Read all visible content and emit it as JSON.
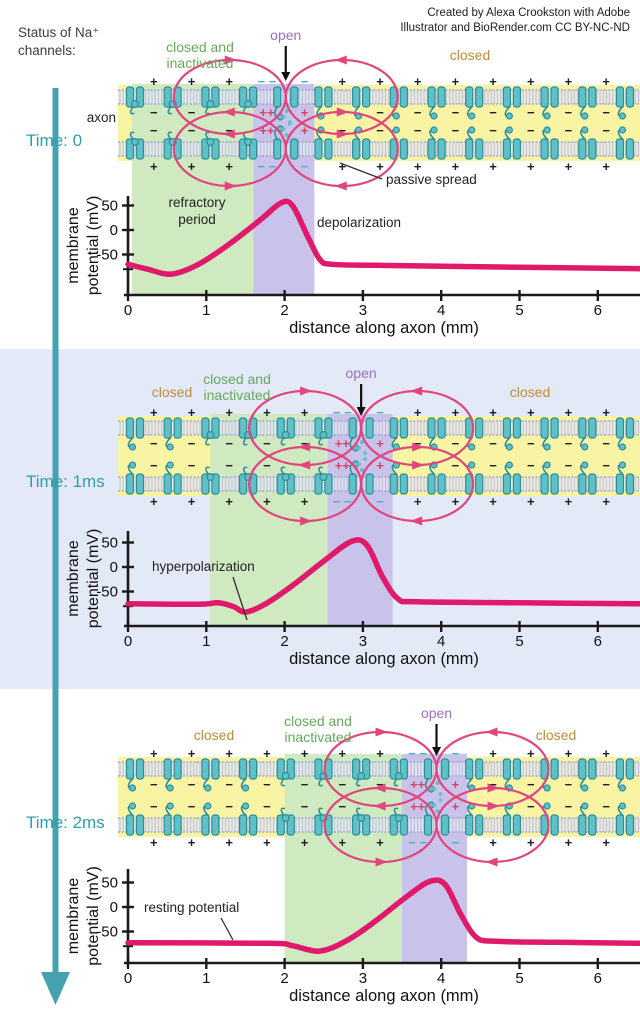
{
  "attribution": {
    "line1": "Created by Alexa Crookston with Adobe",
    "line2": "Illustrator and BioRender.com CC BY-NC-ND"
  },
  "status_label": {
    "line1": "Status of Na⁺",
    "line2": "channels:"
  },
  "colors": {
    "accent_teal": "#2f9fac",
    "timeline_teal": "#44a3af",
    "curve_pink": "#e0196b",
    "loop_pink": "#e0457d",
    "zone_green": "#cfe9c1",
    "zone_purple": "#c9c3ec",
    "zone_yellow": "#f9f3a4",
    "panel2_bg": "#e4e9f7",
    "label_green": "#68a85c",
    "label_purple": "#9a6fc0",
    "label_orange": "#bf8b3a",
    "channel_fill": "#5fc0c5",
    "channel_stroke": "#2c8e99",
    "membrane_fill": "#e7e9f3",
    "membrane_stripe": "#aeb2cf",
    "charge_black": "#1f1f1f",
    "charge_red": "#d6455e",
    "charge_teal": "#49b0bd",
    "axis_black": "#1a1a1a"
  },
  "charges": {
    "outside_resting": "+",
    "inside_resting": "−",
    "outside_depolarized_double": "− −",
    "outside_depolarized_single": "−",
    "inside_depolarized_double": "++",
    "inside_depolarized_single": "+"
  },
  "panels": [
    {
      "id": "time-0",
      "time_label": "Time: 0",
      "axon_label": "axon",
      "channel_labels": {
        "left_closed": "",
        "inactivated_line1": "closed and",
        "inactivated_line2": "inactivated",
        "open": "open",
        "right_closed": "closed"
      },
      "annotations": {
        "refractory_line1": "refractory",
        "refractory_line2": "period",
        "depolarization": "depolarization",
        "passive_spread": "passive spread"
      },
      "channel_states": [
        "inactivated",
        "inactivated",
        "inactivated",
        "inactivated",
        "open",
        "closed",
        "closed",
        "closed",
        "closed",
        "closed",
        "closed",
        "closed",
        "closed",
        "closed"
      ]
    },
    {
      "id": "time-1ms",
      "time_label": "Time: 1ms",
      "axon_label": "",
      "channel_labels": {
        "left_closed": "closed",
        "inactivated_line1": "closed and",
        "inactivated_line2": "inactivated",
        "open": "open",
        "right_closed": "closed"
      },
      "annotations": {
        "hyperpolarization": "hyperpolarization"
      },
      "channel_states": [
        "closed",
        "closed",
        "inactivated",
        "inactivated",
        "inactivated",
        "inactivated",
        "open",
        "closed",
        "closed",
        "closed",
        "closed",
        "closed",
        "closed",
        "closed"
      ]
    },
    {
      "id": "time-2ms",
      "time_label": "Time: 2ms",
      "axon_label": "",
      "channel_labels": {
        "left_closed": "closed",
        "inactivated_line1": "closed and",
        "inactivated_line2": "inactivated",
        "open": "open",
        "right_closed": "closed"
      },
      "annotations": {
        "resting_potential": "resting potential"
      },
      "channel_states": [
        "closed",
        "closed",
        "closed",
        "closed",
        "inactivated",
        "inactivated",
        "inactivated",
        "inactivated",
        "open",
        "closed",
        "closed",
        "closed",
        "closed",
        "closed"
      ]
    }
  ],
  "chart_data": [
    {
      "type": "line",
      "panel": "Time: 0",
      "xlabel": "distance along axon (mm)",
      "ylabel_line1": "membrane",
      "ylabel_line2": "potential (mV)",
      "xticks": [
        0,
        1,
        2,
        3,
        4,
        5,
        6
      ],
      "ytick_labels": [
        50,
        0,
        -50
      ],
      "xlim": [
        0,
        6.55
      ],
      "regions": [
        {
          "label": "refractory period",
          "color_key": "zone_green",
          "x_mm": [
            0.05,
            1.6
          ]
        },
        {
          "label": "depolarization",
          "color_key": "zone_purple",
          "x_mm": [
            1.6,
            2.38
          ]
        }
      ],
      "series": [
        {
          "name": "membrane potential",
          "points_mm_mV": [
            [
              0,
              -70
            ],
            [
              0.25,
              -80
            ],
            [
              0.55,
              -90
            ],
            [
              0.9,
              -70
            ],
            [
              1.3,
              -28
            ],
            [
              1.7,
              22
            ],
            [
              1.95,
              55
            ],
            [
              2.1,
              50
            ],
            [
              2.3,
              -15
            ],
            [
              2.45,
              -60
            ],
            [
              2.6,
              -70
            ],
            [
              3.2,
              -72
            ],
            [
              4.5,
              -75
            ],
            [
              6.55,
              -79
            ]
          ]
        }
      ]
    },
    {
      "type": "line",
      "panel": "Time: 1ms",
      "xlabel": "distance along axon (mm)",
      "ylabel_line1": "membrane",
      "ylabel_line2": "potential (mV)",
      "xticks": [
        0,
        1,
        2,
        3,
        4,
        5,
        6
      ],
      "ytick_labels": [
        50,
        0,
        -50
      ],
      "xlim": [
        0,
        6.55
      ],
      "regions": [
        {
          "label": "closed and inactivated zone",
          "color_key": "zone_green",
          "x_mm": [
            1.05,
            2.55
          ]
        },
        {
          "label": "open zone",
          "color_key": "zone_purple",
          "x_mm": [
            2.55,
            3.38
          ]
        }
      ],
      "series": [
        {
          "name": "membrane potential",
          "points_mm_mV": [
            [
              0,
              -75
            ],
            [
              0.9,
              -76
            ],
            [
              1.15,
              -73
            ],
            [
              1.35,
              -81
            ],
            [
              1.5,
              -92
            ],
            [
              1.75,
              -76
            ],
            [
              2.1,
              -38
            ],
            [
              2.5,
              12
            ],
            [
              2.85,
              52
            ],
            [
              3.05,
              45
            ],
            [
              3.25,
              -20
            ],
            [
              3.45,
              -65
            ],
            [
              3.7,
              -71
            ],
            [
              5,
              -73
            ],
            [
              6.55,
              -75
            ]
          ]
        }
      ]
    },
    {
      "type": "line",
      "panel": "Time: 2ms",
      "xlabel": "distance along axon (mm)",
      "ylabel_line1": "membrane",
      "ylabel_line2": "potential (mV)",
      "xticks": [
        0,
        1,
        2,
        3,
        4,
        5,
        6
      ],
      "ytick_labels": [
        50,
        0,
        -50
      ],
      "xlim": [
        0,
        6.55
      ],
      "regions": [
        {
          "label": "closed and inactivated zone",
          "color_key": "zone_green",
          "x_mm": [
            2.0,
            3.5
          ]
        },
        {
          "label": "open zone",
          "color_key": "zone_purple",
          "x_mm": [
            3.5,
            4.33
          ]
        }
      ],
      "series": [
        {
          "name": "membrane potential",
          "points_mm_mV": [
            [
              0,
              -73
            ],
            [
              1.8,
              -74
            ],
            [
              2.1,
              -79
            ],
            [
              2.45,
              -90
            ],
            [
              2.8,
              -68
            ],
            [
              3.15,
              -30
            ],
            [
              3.55,
              20
            ],
            [
              3.85,
              52
            ],
            [
              4.05,
              46
            ],
            [
              4.25,
              -15
            ],
            [
              4.45,
              -62
            ],
            [
              4.7,
              -70
            ],
            [
              5.5,
              -72
            ],
            [
              6.55,
              -74
            ]
          ]
        }
      ]
    }
  ]
}
